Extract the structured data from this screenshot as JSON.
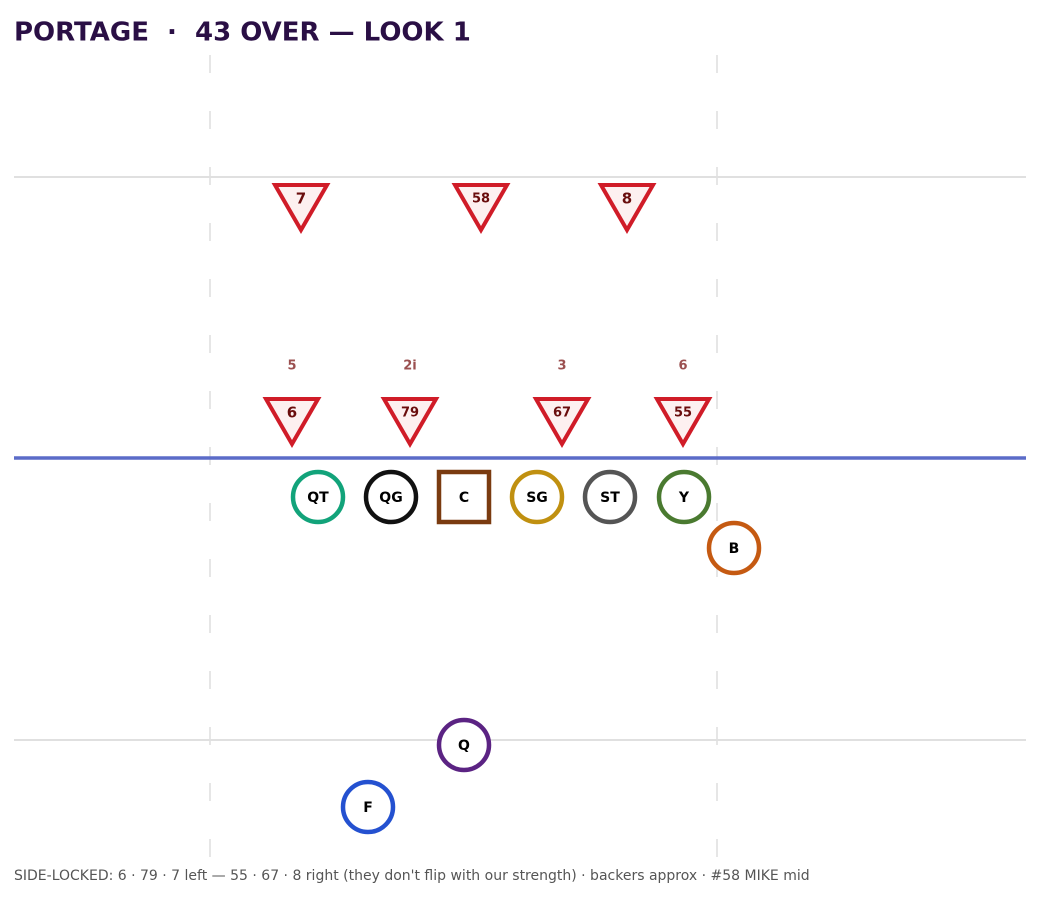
{
  "title": "PORTAGE  ·  43 OVER — LOOK 1",
  "linebackers": [
    {
      "label": "7"
    },
    {
      "label": "58"
    },
    {
      "label": "8"
    }
  ],
  "defensive_line": [
    {
      "technique": "5",
      "label": "6"
    },
    {
      "technique": "2i",
      "label": "79"
    },
    {
      "technique": "3",
      "label": "67"
    },
    {
      "technique": "6",
      "label": "55"
    }
  ],
  "offense": [
    {
      "label": "QT"
    },
    {
      "label": "QG"
    },
    {
      "label": "C"
    },
    {
      "label": "SG"
    },
    {
      "label": "ST"
    },
    {
      "label": "Y"
    },
    {
      "label": "B"
    },
    {
      "label": "Q"
    },
    {
      "label": "F"
    }
  ],
  "footer": "SIDE-LOCKED: 6 · 79 · 7 left — 55 · 67 · 8 right (they don't flip with our strength) · backers approx · #58 MIKE mid"
}
